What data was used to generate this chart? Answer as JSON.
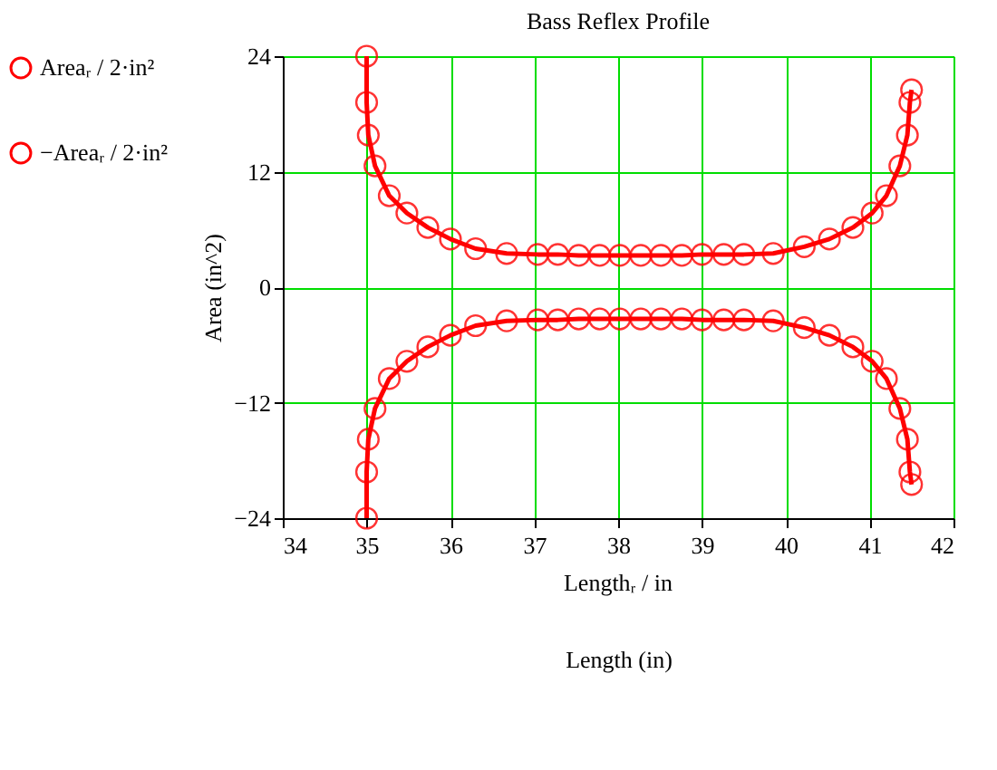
{
  "chart_data": {
    "type": "line",
    "title": "Bass Reflex Profile",
    "xlabel": "Length (in)",
    "ylabel": "Area (in^2)",
    "annotations": [
      "Lengthᵣ / in"
    ],
    "x": [
      35.0,
      35.0,
      35.02,
      35.1,
      35.27,
      35.48,
      35.73,
      36.0,
      36.3,
      36.67,
      37.04,
      37.28,
      37.53,
      37.78,
      38.02,
      38.27,
      38.51,
      38.76,
      39.0,
      39.26,
      39.5,
      39.85,
      40.22,
      40.52,
      40.8,
      41.03,
      41.2,
      41.36,
      41.45,
      41.48,
      41.5
    ],
    "series": [
      {
        "name": "Areaᵣ / 2·in²",
        "color": "#ff0000",
        "values": [
          24,
          19.2,
          15.8,
          12.6,
          9.5,
          7.7,
          6.2,
          5.0,
          4.0,
          3.5,
          3.4,
          3.4,
          3.3,
          3.3,
          3.3,
          3.3,
          3.3,
          3.3,
          3.4,
          3.4,
          3.4,
          3.5,
          4.2,
          5.0,
          6.2,
          7.7,
          9.5,
          12.6,
          15.8,
          19.2,
          20.5
        ]
      },
      {
        "name": "−Areaᵣ / 2·in²",
        "color": "#ff0000",
        "values": [
          -24,
          -19.2,
          -15.8,
          -12.6,
          -9.5,
          -7.7,
          -6.2,
          -5.0,
          -4.0,
          -3.5,
          -3.4,
          -3.4,
          -3.3,
          -3.3,
          -3.3,
          -3.3,
          -3.3,
          -3.3,
          -3.4,
          -3.4,
          -3.4,
          -3.5,
          -4.2,
          -5.0,
          -6.2,
          -7.7,
          -9.5,
          -12.6,
          -15.8,
          -19.2,
          -20.5
        ]
      }
    ],
    "xlim": [
      34,
      42
    ],
    "xticks": [
      34,
      35,
      36,
      37,
      38,
      39,
      40,
      41,
      42
    ],
    "ylim": [
      -24,
      24
    ],
    "yticks": [
      -24,
      -12,
      0,
      12,
      24
    ],
    "grid": true,
    "legend": "left",
    "marker": "circle",
    "line_style": "solid"
  }
}
